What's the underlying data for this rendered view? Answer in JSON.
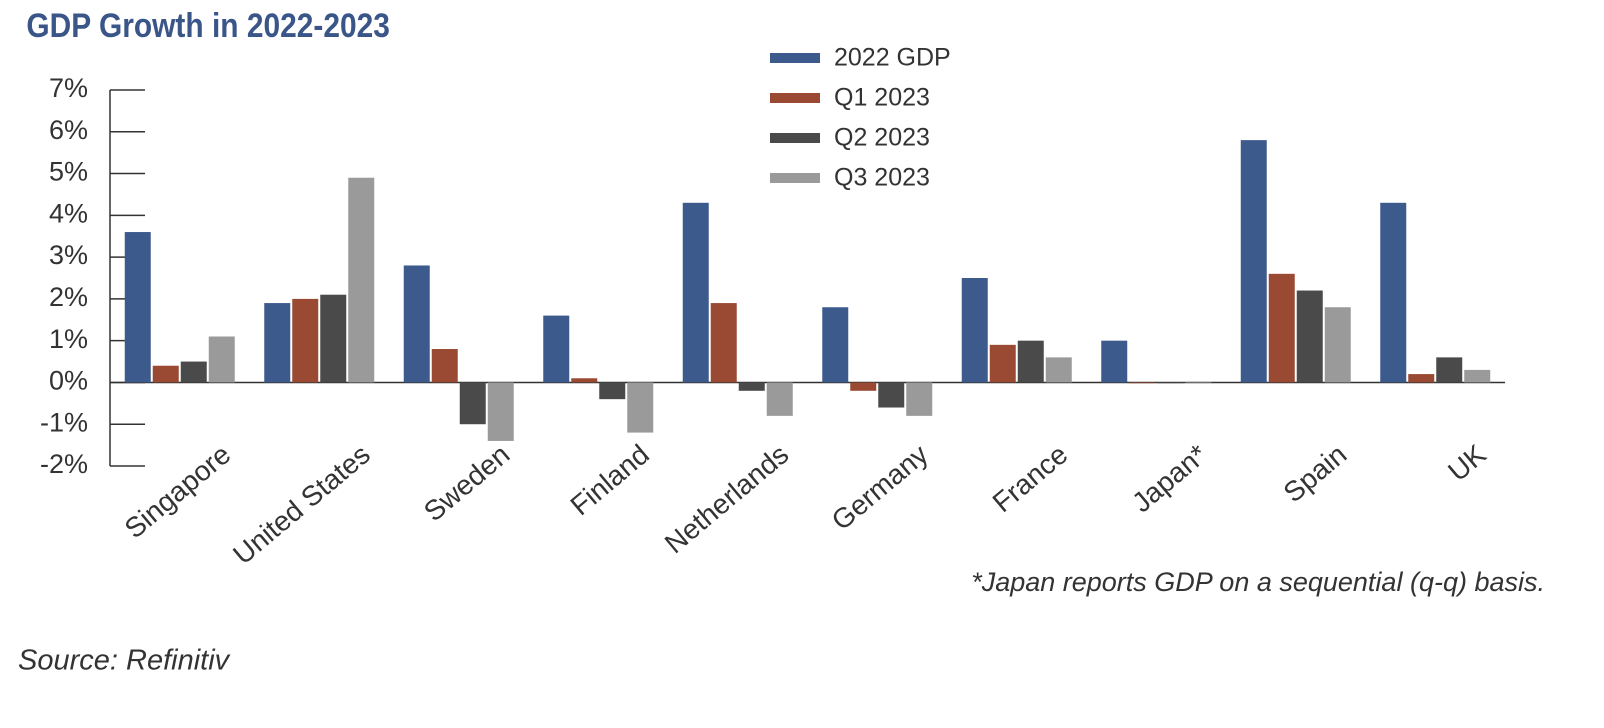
{
  "chart_data": {
    "type": "bar",
    "title": "GDP Growth in 2022-2023",
    "categories": [
      "Singapore",
      "United States",
      "Sweden",
      "Finland",
      "Netherlands",
      "Germany",
      "France",
      "Japan*",
      "Spain",
      "UK"
    ],
    "series": [
      {
        "name": "2022 GDP",
        "color": "#3d5a8c",
        "values": [
          3.6,
          1.9,
          2.8,
          1.6,
          4.3,
          1.8,
          2.5,
          1.0,
          5.8,
          4.3
        ]
      },
      {
        "name": "Q1 2023",
        "color": "#9a4a33",
        "values": [
          0.4,
          2.0,
          0.8,
          0.1,
          1.9,
          -0.2,
          0.9,
          0,
          2.6,
          0.2
        ]
      },
      {
        "name": "Q2 2023",
        "color": "#4a4a4a",
        "values": [
          0.5,
          2.1,
          -1.0,
          -0.4,
          -0.2,
          -0.6,
          1.0,
          0,
          2.2,
          0.6
        ]
      },
      {
        "name": "Q3 2023",
        "color": "#9a9a9a",
        "values": [
          1.1,
          4.9,
          -1.4,
          -1.2,
          -0.8,
          -0.8,
          0.6,
          0,
          1.8,
          0.3
        ]
      }
    ],
    "ylim": [
      -2,
      7
    ],
    "yticks": [
      {
        "value": -2,
        "label": "-2%"
      },
      {
        "value": -1,
        "label": "-1%"
      },
      {
        "value": 0,
        "label": "0%"
      },
      {
        "value": 1,
        "label": "1%"
      },
      {
        "value": 2,
        "label": "2%"
      },
      {
        "value": 3,
        "label": "3%"
      },
      {
        "value": 4,
        "label": "4%"
      },
      {
        "value": 5,
        "label": "5%"
      },
      {
        "value": 6,
        "label": "6%"
      },
      {
        "value": 7,
        "label": "7%"
      }
    ],
    "legend": "top",
    "note": "*Japan reports GDP on a sequential (q-q) basis.",
    "source": "Source: Refinitiv"
  }
}
